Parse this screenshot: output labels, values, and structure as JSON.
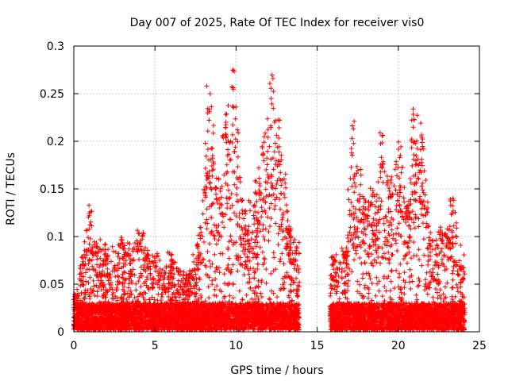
{
  "chart_data": {
    "type": "scatter",
    "title": "Day 007 of 2025, Rate Of TEC Index for receiver vis0",
    "xlabel": "GPS time / hours",
    "ylabel": "ROTI / TECUs",
    "xlim": [
      0,
      25
    ],
    "ylim": [
      0,
      0.3
    ],
    "xticks": [
      0,
      5,
      10,
      15,
      20,
      25
    ],
    "yticks": [
      0,
      0.05,
      0.1,
      0.15,
      0.2,
      0.25,
      0.3
    ],
    "xtick_labels": [
      "0",
      "5",
      "10",
      "15",
      "20",
      "25"
    ],
    "ytick_labels": [
      "0",
      "0.05",
      "0.1",
      "0.15",
      "0.2",
      "0.25",
      "0.3"
    ],
    "grid": true,
    "marker": "+",
    "marker_color": "#ff0000",
    "data_gap_hours": [
      13.9,
      15.8
    ],
    "segments": [
      {
        "x_range": [
          0.0,
          13.9
        ],
        "description": "dense ROTI samples"
      },
      {
        "x_range": [
          15.8,
          24.1
        ],
        "description": "dense ROTI samples"
      }
    ],
    "envelope": [
      {
        "x": 0.1,
        "y": 0.04
      },
      {
        "x": 0.5,
        "y": 0.08
      },
      {
        "x": 1.0,
        "y": 0.135
      },
      {
        "x": 1.5,
        "y": 0.1
      },
      {
        "x": 2.0,
        "y": 0.09
      },
      {
        "x": 3.0,
        "y": 0.1
      },
      {
        "x": 4.0,
        "y": 0.11
      },
      {
        "x": 5.0,
        "y": 0.08
      },
      {
        "x": 6.0,
        "y": 0.085
      },
      {
        "x": 7.0,
        "y": 0.06
      },
      {
        "x": 7.7,
        "y": 0.1
      },
      {
        "x": 8.3,
        "y": 0.267
      },
      {
        "x": 8.8,
        "y": 0.17
      },
      {
        "x": 9.3,
        "y": 0.23
      },
      {
        "x": 9.8,
        "y": 0.278
      },
      {
        "x": 10.5,
        "y": 0.13
      },
      {
        "x": 11.2,
        "y": 0.16
      },
      {
        "x": 11.7,
        "y": 0.21
      },
      {
        "x": 12.2,
        "y": 0.277
      },
      {
        "x": 12.7,
        "y": 0.225
      },
      {
        "x": 13.3,
        "y": 0.12
      },
      {
        "x": 13.8,
        "y": 0.1
      },
      {
        "x": 16.0,
        "y": 0.08
      },
      {
        "x": 16.7,
        "y": 0.09
      },
      {
        "x": 17.2,
        "y": 0.225
      },
      {
        "x": 17.9,
        "y": 0.145
      },
      {
        "x": 18.5,
        "y": 0.15
      },
      {
        "x": 19.0,
        "y": 0.21
      },
      {
        "x": 19.5,
        "y": 0.16
      },
      {
        "x": 20.1,
        "y": 0.2
      },
      {
        "x": 20.6,
        "y": 0.14
      },
      {
        "x": 20.9,
        "y": 0.24
      },
      {
        "x": 21.5,
        "y": 0.22
      },
      {
        "x": 22.0,
        "y": 0.1
      },
      {
        "x": 22.6,
        "y": 0.11
      },
      {
        "x": 23.3,
        "y": 0.15
      },
      {
        "x": 23.9,
        "y": 0.08
      }
    ]
  }
}
